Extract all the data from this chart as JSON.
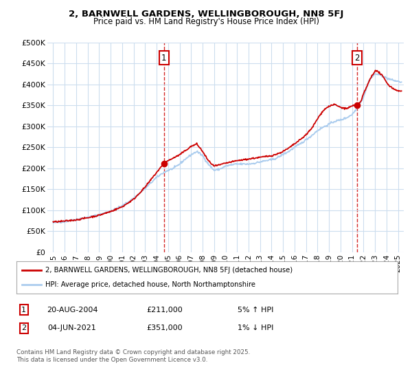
{
  "title": "2, BARNWELL GARDENS, WELLINGBOROUGH, NN8 5FJ",
  "subtitle": "Price paid vs. HM Land Registry's House Price Index (HPI)",
  "ylabel_ticks": [
    "£0",
    "£50K",
    "£100K",
    "£150K",
    "£200K",
    "£250K",
    "£300K",
    "£350K",
    "£400K",
    "£450K",
    "£500K"
  ],
  "ytick_values": [
    0,
    50000,
    100000,
    150000,
    200000,
    250000,
    300000,
    350000,
    400000,
    450000,
    500000
  ],
  "xlim": [
    1994.5,
    2025.5
  ],
  "ylim": [
    0,
    500000
  ],
  "sale1_date": 2004.64,
  "sale1_price": 211000,
  "sale2_date": 2021.42,
  "sale2_price": 351000,
  "line_house_color": "#cc0000",
  "line_hpi_color": "#aaccee",
  "legend_house_label": "2, BARNWELL GARDENS, WELLINGBOROUGH, NN8 5FJ (detached house)",
  "legend_hpi_label": "HPI: Average price, detached house, North Northamptonshire",
  "table_row1": [
    "1",
    "20-AUG-2004",
    "£211,000",
    "5% ↑ HPI"
  ],
  "table_row2": [
    "2",
    "04-JUN-2021",
    "£351,000",
    "1% ↓ HPI"
  ],
  "footnote": "Contains HM Land Registry data © Crown copyright and database right 2025.\nThis data is licensed under the Open Government Licence v3.0.",
  "background_color": "#ffffff",
  "grid_color": "#ccddee",
  "xticks": [
    1995,
    1996,
    1997,
    1998,
    1999,
    2000,
    2001,
    2002,
    2003,
    2004,
    2005,
    2006,
    2007,
    2008,
    2009,
    2010,
    2011,
    2012,
    2013,
    2014,
    2015,
    2016,
    2017,
    2018,
    2019,
    2020,
    2021,
    2022,
    2023,
    2024,
    2025
  ],
  "hpi_anchors_x": [
    1995.0,
    1996.0,
    1997.0,
    1998.0,
    1999.0,
    2000.0,
    2001.0,
    2002.0,
    2003.0,
    2004.0,
    2004.5,
    2005.0,
    2005.5,
    2006.0,
    2006.5,
    2007.0,
    2007.5,
    2008.0,
    2008.5,
    2009.0,
    2009.5,
    2010.0,
    2010.5,
    2011.0,
    2011.5,
    2012.0,
    2012.5,
    2013.0,
    2013.5,
    2014.0,
    2014.5,
    2015.0,
    2015.5,
    2016.0,
    2016.5,
    2017.0,
    2017.5,
    2018.0,
    2018.5,
    2019.0,
    2019.5,
    2020.0,
    2020.5,
    2021.0,
    2021.5,
    2022.0,
    2022.5,
    2023.0,
    2023.5,
    2024.0,
    2024.5,
    2025.0,
    2025.3
  ],
  "hpi_anchors_y": [
    70000,
    73000,
    78000,
    83000,
    89000,
    98000,
    110000,
    128000,
    152000,
    178000,
    188000,
    195000,
    200000,
    210000,
    222000,
    232000,
    240000,
    230000,
    210000,
    195000,
    198000,
    205000,
    208000,
    210000,
    210000,
    210000,
    212000,
    215000,
    218000,
    220000,
    225000,
    233000,
    240000,
    250000,
    258000,
    268000,
    278000,
    290000,
    298000,
    305000,
    312000,
    315000,
    320000,
    328000,
    345000,
    370000,
    410000,
    425000,
    422000,
    415000,
    410000,
    407000,
    405000
  ],
  "house_anchors_x": [
    1995.0,
    1996.0,
    1997.0,
    1998.0,
    1999.0,
    2000.0,
    2001.0,
    2002.0,
    2003.0,
    2004.0,
    2004.64,
    2005.0,
    2005.5,
    2006.0,
    2006.5,
    2007.0,
    2007.5,
    2008.0,
    2008.5,
    2009.0,
    2009.5,
    2010.0,
    2010.5,
    2011.0,
    2011.5,
    2012.0,
    2012.5,
    2013.0,
    2013.5,
    2014.0,
    2014.5,
    2015.0,
    2015.5,
    2016.0,
    2016.5,
    2017.0,
    2017.5,
    2018.0,
    2018.5,
    2019.0,
    2019.5,
    2020.0,
    2020.5,
    2021.0,
    2021.42,
    2021.8,
    2022.0,
    2022.3,
    2022.6,
    2023.0,
    2023.3,
    2023.7,
    2024.0,
    2024.3,
    2024.7,
    2025.0,
    2025.3
  ],
  "house_anchors_y": [
    72000,
    74000,
    77000,
    82000,
    88000,
    97000,
    108000,
    126000,
    155000,
    190000,
    211000,
    218000,
    225000,
    232000,
    242000,
    252000,
    258000,
    240000,
    218000,
    205000,
    208000,
    212000,
    215000,
    218000,
    220000,
    222000,
    224000,
    226000,
    228000,
    230000,
    234000,
    240000,
    248000,
    258000,
    268000,
    280000,
    295000,
    318000,
    338000,
    348000,
    352000,
    345000,
    342000,
    348000,
    351000,
    360000,
    378000,
    395000,
    415000,
    432000,
    430000,
    418000,
    405000,
    395000,
    388000,
    385000,
    383000
  ]
}
